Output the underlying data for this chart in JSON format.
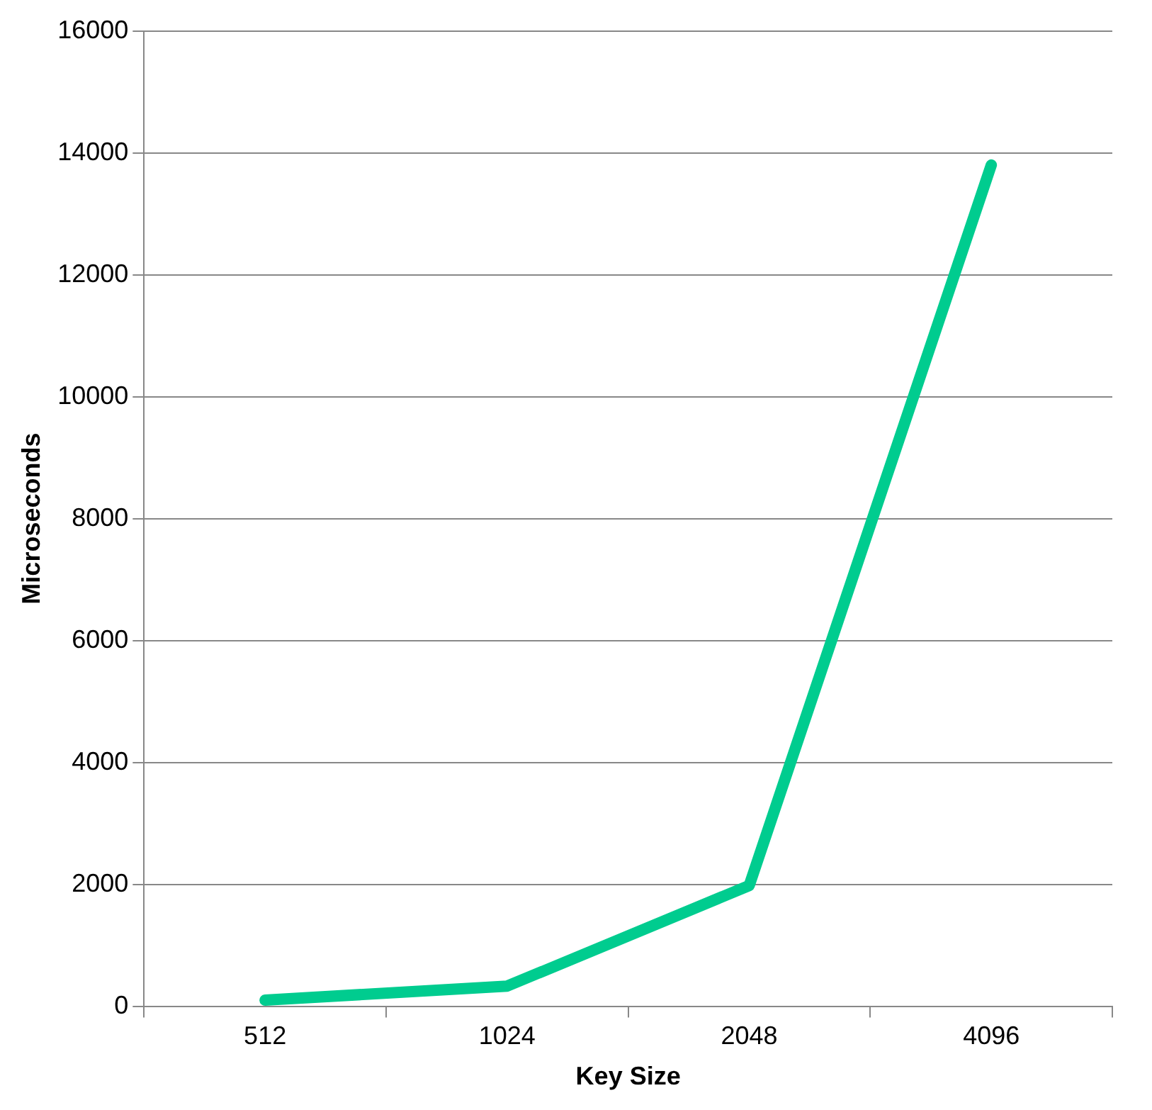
{
  "chart_data": {
    "type": "line",
    "xlabel": "Key Size",
    "ylabel": "Microseconds",
    "categories": [
      "512",
      "1024",
      "2048",
      "4096"
    ],
    "series": [
      {
        "color": "#00cc8f",
        "values": [
          100,
          330,
          1980,
          13800
        ]
      }
    ],
    "ylim": [
      0,
      16000
    ],
    "yticks": [
      0,
      2000,
      4000,
      6000,
      8000,
      10000,
      12000,
      14000,
      16000
    ],
    "grid": "y",
    "legend": false,
    "marker": "none",
    "line_style": "solid"
  }
}
